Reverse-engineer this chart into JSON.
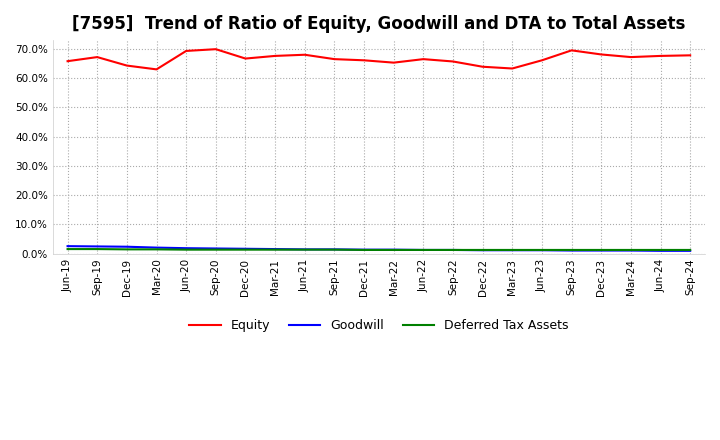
{
  "title": "[7595]  Trend of Ratio of Equity, Goodwill and DTA to Total Assets",
  "title_fontsize": 12,
  "ylim": [
    0.0,
    0.73
  ],
  "yticks": [
    0.0,
    0.1,
    0.2,
    0.3,
    0.4,
    0.5,
    0.6,
    0.7
  ],
  "x_labels": [
    "Jun-19",
    "Sep-19",
    "Dec-19",
    "Mar-20",
    "Jun-20",
    "Sep-20",
    "Dec-20",
    "Mar-21",
    "Jun-21",
    "Sep-21",
    "Dec-21",
    "Mar-22",
    "Jun-22",
    "Sep-22",
    "Dec-22",
    "Mar-23",
    "Jun-23",
    "Sep-23",
    "Dec-23",
    "Mar-24",
    "Jun-24",
    "Sep-24"
  ],
  "equity": [
    0.658,
    0.672,
    0.643,
    0.63,
    0.693,
    0.699,
    0.667,
    0.676,
    0.68,
    0.665,
    0.661,
    0.653,
    0.665,
    0.657,
    0.639,
    0.633,
    0.661,
    0.695,
    0.681,
    0.672,
    0.676,
    0.678
  ],
  "goodwill": [
    0.026,
    0.025,
    0.024,
    0.021,
    0.019,
    0.018,
    0.017,
    0.016,
    0.015,
    0.015,
    0.014,
    0.014,
    0.013,
    0.013,
    0.012,
    0.012,
    0.012,
    0.011,
    0.011,
    0.011,
    0.01,
    0.01
  ],
  "dta": [
    0.016,
    0.016,
    0.015,
    0.015,
    0.014,
    0.014,
    0.014,
    0.014,
    0.014,
    0.014,
    0.013,
    0.013,
    0.013,
    0.013,
    0.013,
    0.013,
    0.013,
    0.013,
    0.013,
    0.013,
    0.013,
    0.013
  ],
  "equity_color": "#ff0000",
  "goodwill_color": "#0000ff",
  "dta_color": "#008000",
  "line_width": 1.5,
  "legend_labels": [
    "Equity",
    "Goodwill",
    "Deferred Tax Assets"
  ],
  "background_color": "#ffffff",
  "plot_bg_color": "#ffffff",
  "grid_color": "#aaaaaa",
  "tick_fontsize": 7.5
}
